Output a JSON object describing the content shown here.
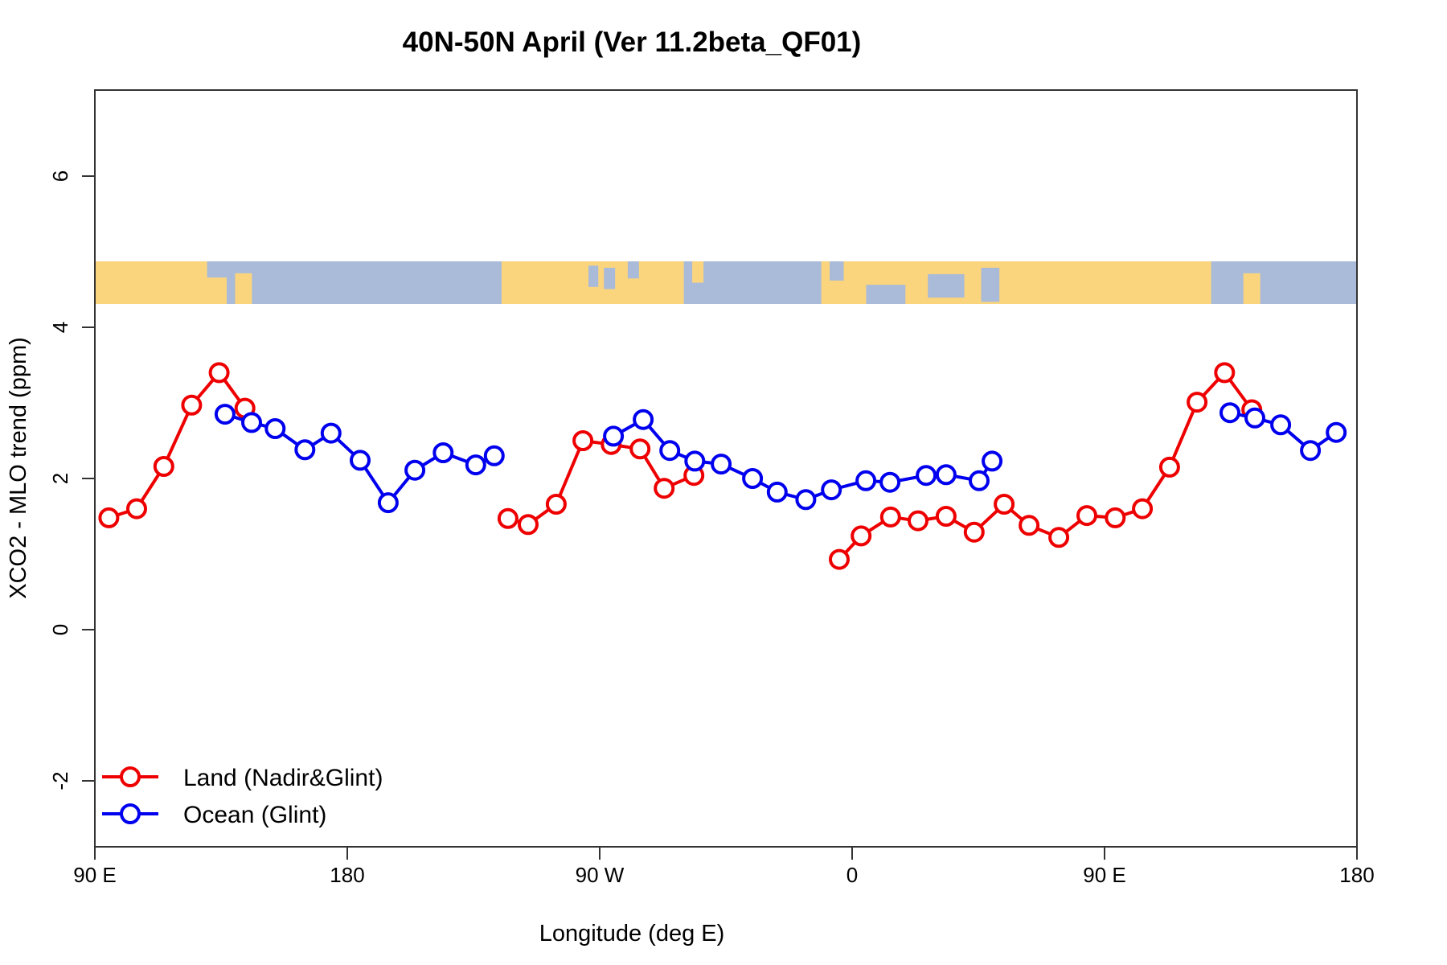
{
  "title": "40N-50N April (Ver 11.2beta_QF01)",
  "axes": {
    "x_label": "Longitude (deg E)",
    "y_label": "XCO2 - MLO trend (ppm)"
  },
  "legend": {
    "items": [
      {
        "label": "Land (Nadir&Glint)",
        "color": "#ee0000"
      },
      {
        "label": "Ocean (Glint)",
        "color": "#0000ee"
      }
    ]
  },
  "chart_data": {
    "type": "line",
    "title": "40N-50N April (Ver 11.2beta_QF01)",
    "xlabel": "Longitude (deg E)",
    "ylabel": "XCO2 - MLO trend (ppm)",
    "grid": false,
    "legend_position": "bottom-left",
    "xlim": [
      90,
      540
    ],
    "ylim": [
      -2.9,
      7.1
    ],
    "x_ticks": [
      {
        "lon": 90,
        "label": "90 E"
      },
      {
        "lon": 180,
        "label": "180"
      },
      {
        "lon": 270,
        "label": "90 W"
      },
      {
        "lon": 360,
        "label": "0"
      },
      {
        "lon": 450,
        "label": "90 E"
      },
      {
        "lon": 540,
        "label": "180"
      }
    ],
    "y_ticks": [
      {
        "value": -2,
        "label": "-2"
      },
      {
        "value": 0,
        "label": "0"
      },
      {
        "value": 2,
        "label": "2"
      },
      {
        "value": 4,
        "label": "4"
      },
      {
        "value": 6,
        "label": "6"
      }
    ],
    "series": [
      {
        "name": "Land (Nadir&Glint)",
        "color": "#ee0000",
        "marker": "open-circle",
        "segments": [
          [
            [
              95.0,
              1.48
            ],
            [
              104.9,
              1.6
            ],
            [
              114.6,
              2.16
            ],
            [
              124.5,
              2.97
            ],
            [
              134.3,
              3.4
            ],
            [
              143.5,
              2.93
            ]
          ],
          [
            [
              237.3,
              1.47
            ],
            [
              244.5,
              1.39
            ],
            [
              254.5,
              1.66
            ],
            [
              264.0,
              2.5
            ],
            [
              274.1,
              2.45
            ],
            [
              284.4,
              2.39
            ],
            [
              293.0,
              1.87
            ],
            [
              303.6,
              2.04
            ]
          ],
          [
            [
              355.4,
              0.93
            ],
            [
              363.2,
              1.24
            ],
            [
              373.7,
              1.49
            ],
            [
              383.5,
              1.44
            ],
            [
              393.5,
              1.5
            ],
            [
              403.5,
              1.29
            ],
            [
              414.2,
              1.66
            ],
            [
              423.1,
              1.38
            ],
            [
              433.7,
              1.22
            ],
            [
              443.7,
              1.51
            ],
            [
              453.8,
              1.48
            ],
            [
              463.5,
              1.6
            ],
            [
              473.2,
              2.15
            ],
            [
              483.0,
              3.01
            ],
            [
              492.8,
              3.4
            ],
            [
              502.5,
              2.91
            ]
          ]
        ]
      },
      {
        "name": "Ocean (Glint)",
        "color": "#0000ee",
        "marker": "open-circle",
        "segments": [
          [
            [
              136.4,
              2.85
            ],
            [
              145.9,
              2.74
            ],
            [
              154.3,
              2.66
            ],
            [
              164.9,
              2.38
            ],
            [
              174.2,
              2.6
            ],
            [
              184.6,
              2.24
            ],
            [
              194.6,
              1.68
            ],
            [
              204.1,
              2.11
            ],
            [
              214.2,
              2.34
            ],
            [
              225.8,
              2.18
            ],
            [
              232.4,
              2.3
            ]
          ],
          [
            [
              274.9,
              2.56
            ],
            [
              285.5,
              2.78
            ],
            [
              295.0,
              2.37
            ],
            [
              303.9,
              2.23
            ],
            [
              313.3,
              2.19
            ],
            [
              324.5,
              2.0
            ],
            [
              333.3,
              1.82
            ],
            [
              343.5,
              1.72
            ],
            [
              352.6,
              1.85
            ],
            [
              364.9,
              1.97
            ],
            [
              373.5,
              1.95
            ],
            [
              386.4,
              2.04
            ],
            [
              393.5,
              2.05
            ],
            [
              405.3,
              1.97
            ],
            [
              409.9,
              2.23
            ]
          ],
          [
            [
              494.7,
              2.87
            ],
            [
              503.6,
              2.8
            ],
            [
              512.8,
              2.71
            ],
            [
              523.4,
              2.37
            ],
            [
              532.6,
              2.61
            ]
          ]
        ]
      }
    ],
    "map_strip": {
      "value_top": 4.87,
      "value_bottom": 4.31,
      "ocean_color": "#a9bbd8",
      "land_color": "#fbd57e",
      "land_segments": [
        {
          "from": 90,
          "to": 137,
          "top": 0,
          "bottom": 1
        },
        {
          "from": 140,
          "to": 146,
          "top": 0.28,
          "bottom": 1
        },
        {
          "from": 235,
          "to": 300,
          "top": 0,
          "bottom": 1
        },
        {
          "from": 303,
          "to": 307,
          "top": 0,
          "bottom": 0.5
        },
        {
          "from": 349,
          "to": 488,
          "top": 0,
          "bottom": 1
        },
        {
          "from": 499.5,
          "to": 505.5,
          "top": 0.28,
          "bottom": 1
        }
      ],
      "ocean_patches": [
        {
          "from": 130,
          "to": 137,
          "top": 0,
          "bottom": 0.38
        },
        {
          "from": 266,
          "to": 269.5,
          "top": 0.1,
          "bottom": 0.6
        },
        {
          "from": 271.5,
          "to": 275.5,
          "top": 0.15,
          "bottom": 0.65
        },
        {
          "from": 280,
          "to": 284,
          "top": 0,
          "bottom": 0.4
        },
        {
          "from": 352,
          "to": 357,
          "top": 0,
          "bottom": 0.45
        },
        {
          "from": 365,
          "to": 379,
          "top": 0.55,
          "bottom": 1
        },
        {
          "from": 387,
          "to": 400,
          "top": 0.3,
          "bottom": 0.85
        },
        {
          "from": 406,
          "to": 412.5,
          "top": 0.15,
          "bottom": 0.95
        }
      ]
    }
  }
}
